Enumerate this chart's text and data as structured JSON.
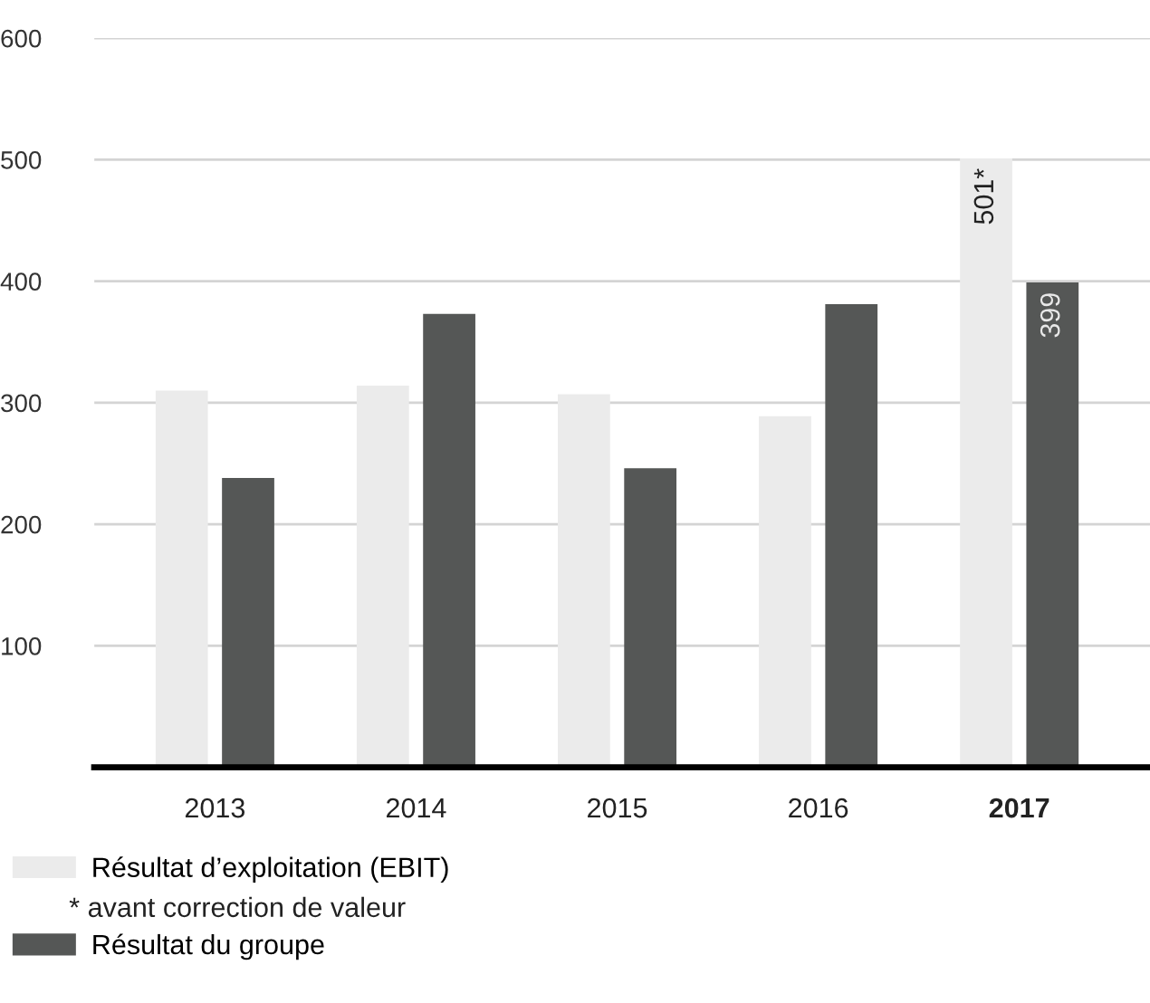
{
  "chart_data": {
    "type": "bar",
    "categories": [
      "2013",
      "2014",
      "2015",
      "2016",
      "2017"
    ],
    "series": [
      {
        "name": "Résultat d’exploitation (EBIT)",
        "color": "#ebebeb",
        "values": [
          310,
          314,
          307,
          289,
          501
        ],
        "value_labels": [
          null,
          null,
          null,
          null,
          "501*"
        ]
      },
      {
        "name": "Résultat du groupe",
        "color": "#555756",
        "values": [
          238,
          373,
          246,
          381,
          399
        ],
        "value_labels": [
          null,
          null,
          null,
          null,
          "399"
        ]
      }
    ],
    "annotations": [
      "* avant correction de valeur"
    ],
    "ylim": [
      0,
      600
    ],
    "yticks": [
      {
        "value": 0,
        "label": null
      },
      100,
      200,
      300,
      400,
      500,
      600
    ],
    "grid": "y",
    "legend": "bottom left"
  }
}
